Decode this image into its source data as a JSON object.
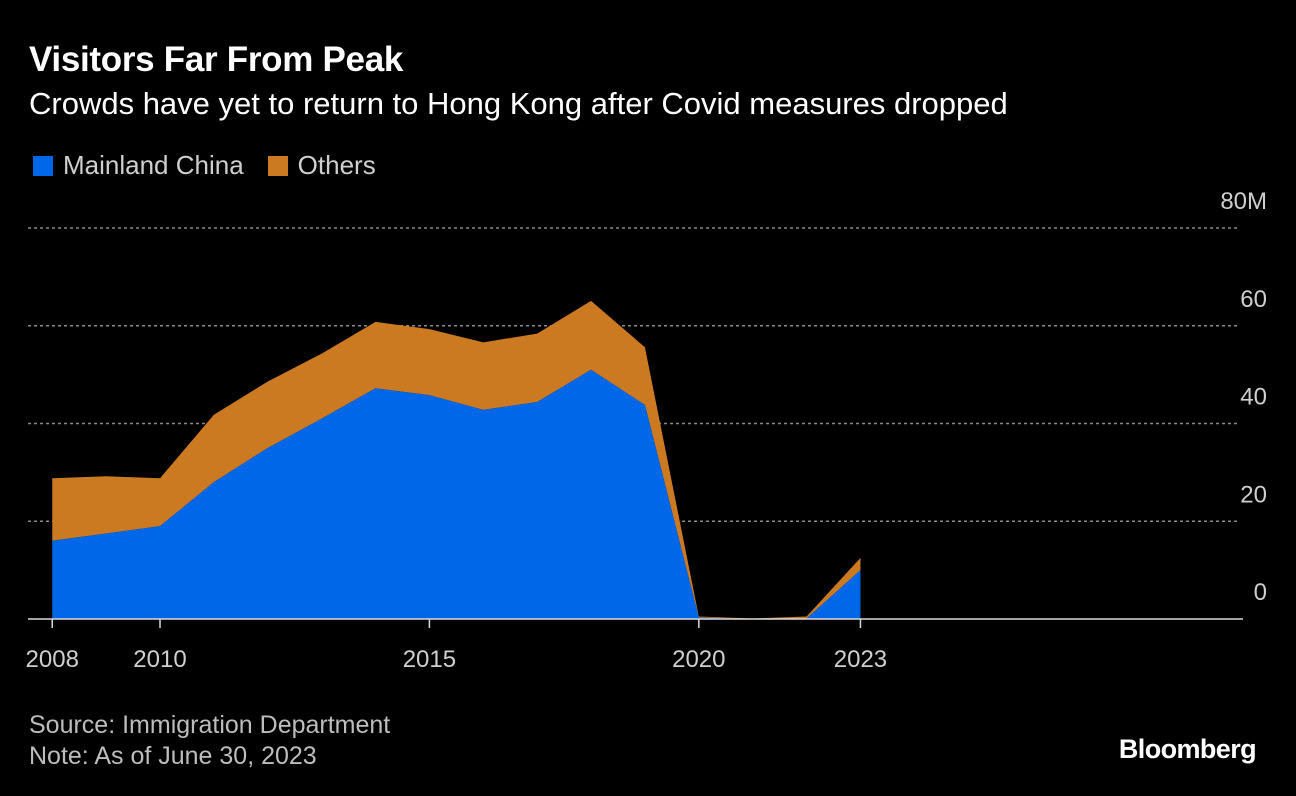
{
  "header": {
    "title": "Visitors Far From Peak",
    "subtitle": "Crowds have yet to return to Hong Kong after Covid measures dropped"
  },
  "footer": {
    "source": "Source: Immigration Department",
    "note": "Note: As of June 30, 2023",
    "brand": "Bloomberg"
  },
  "colors": {
    "background": "#000000",
    "mainland": "#0068e8",
    "others": "#cc7a22",
    "grid": "#8a8a8a",
    "tick_text": "#cfcfcf"
  },
  "chart_data": {
    "type": "area",
    "stacked": true,
    "title": "Visitors Far From Peak",
    "subtitle": "Crowds have yet to return to Hong Kong after Covid measures dropped",
    "x": [
      2008,
      2009,
      2010,
      2011,
      2012,
      2013,
      2014,
      2015,
      2016,
      2017,
      2018,
      2019,
      2020,
      2021,
      2022,
      2023
    ],
    "series": [
      {
        "name": "Mainland China",
        "color": "#0068e8",
        "values": [
          16.0,
          17.5,
          19.0,
          28.0,
          35.0,
          41.0,
          47.2,
          45.8,
          42.8,
          44.4,
          51.0,
          43.8,
          0.3,
          0.0,
          0.1,
          10.0
        ]
      },
      {
        "name": "Others",
        "color": "#cc7a22",
        "values": [
          12.8,
          11.7,
          9.8,
          13.8,
          13.6,
          13.3,
          13.6,
          13.5,
          13.8,
          14.0,
          14.1,
          11.8,
          0.2,
          0.1,
          0.4,
          2.5
        ]
      }
    ],
    "xlim": [
      2007.55,
      2030.1
    ],
    "ylim": [
      0,
      80
    ],
    "xticks": [
      {
        "value": 2008,
        "label": "2008"
      },
      {
        "value": 2010,
        "label": "2010"
      },
      {
        "value": 2015,
        "label": "2015"
      },
      {
        "value": 2020,
        "label": "2020"
      },
      {
        "value": 2023,
        "label": "2023"
      }
    ],
    "yticks": [
      {
        "value": 0,
        "label": "0"
      },
      {
        "value": 20,
        "label": "20"
      },
      {
        "value": 40,
        "label": "40"
      },
      {
        "value": 60,
        "label": "60"
      },
      {
        "value": 80,
        "label": "80M"
      }
    ],
    "grid": true,
    "legend": "top-left"
  }
}
